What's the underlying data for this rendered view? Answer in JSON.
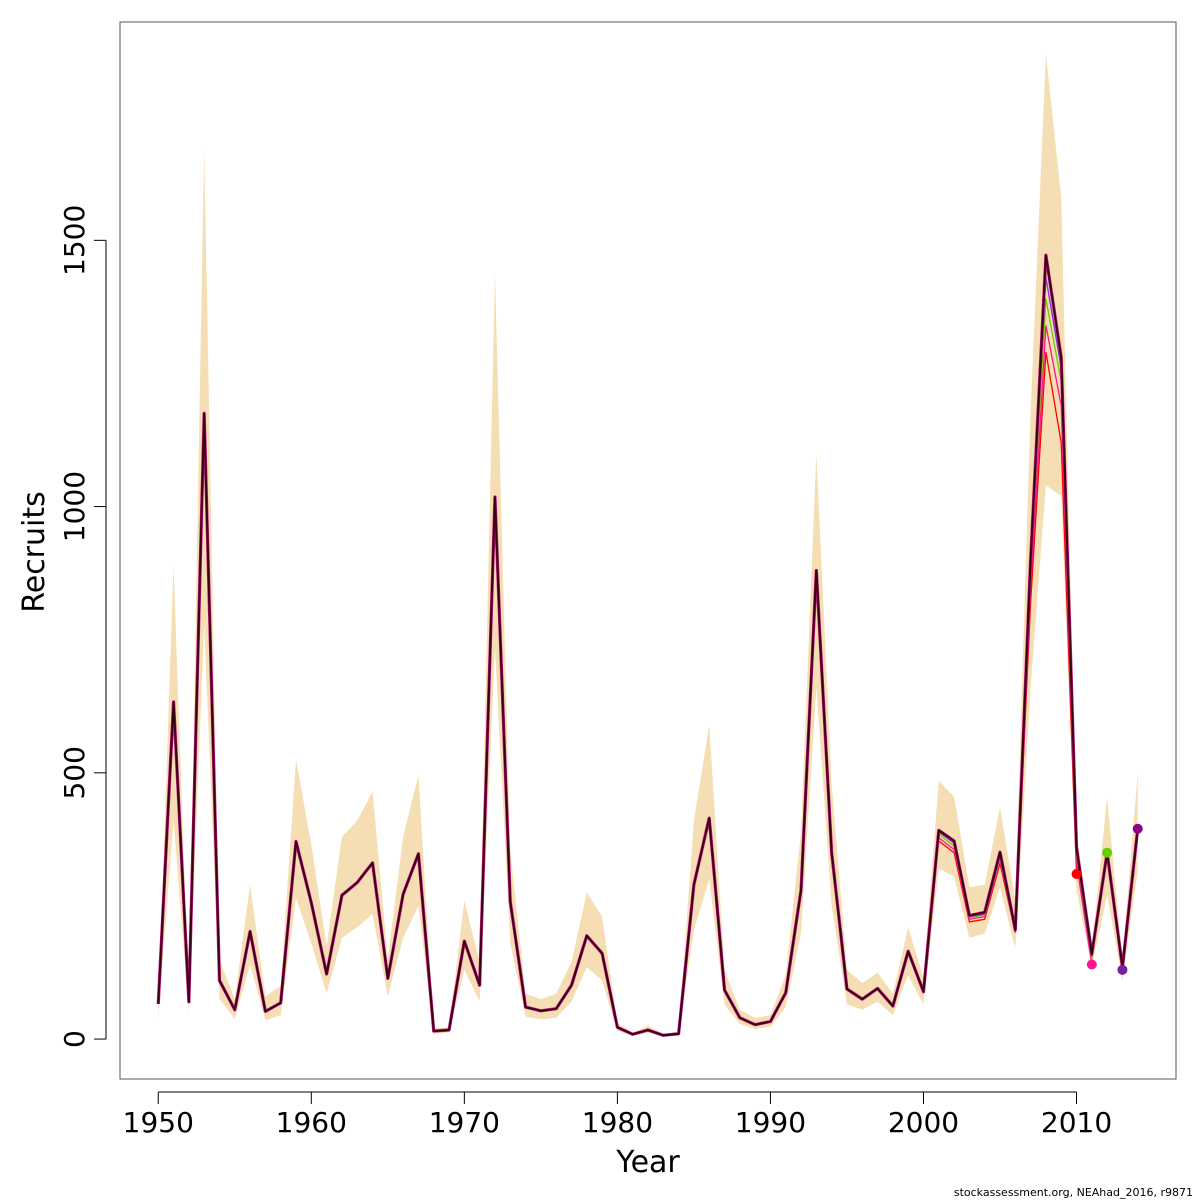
{
  "chart_data": {
    "type": "line",
    "xlabel": "Year",
    "ylabel": "Recruits",
    "xlim": [
      1947.5,
      2016.5
    ],
    "ylim": [
      -75,
      1910
    ],
    "xticks": [
      1950,
      1960,
      1970,
      1980,
      1990,
      2000,
      2010
    ],
    "yticks": [
      0,
      500,
      1000,
      1500
    ],
    "grid": false,
    "legend": "none",
    "colors": {
      "band": "#f5deb3",
      "main": "#000000",
      "retro": [
        "#ff0000",
        "#ff1493",
        "#66cd00",
        "#8a2be2",
        "#8b008b",
        "#c71585"
      ],
      "frame": "#555555"
    },
    "years": [
      1950,
      1951,
      1952,
      1953,
      1954,
      1955,
      1956,
      1957,
      1958,
      1959,
      1960,
      1961,
      1962,
      1963,
      1964,
      1965,
      1966,
      1967,
      1968,
      1969,
      1970,
      1971,
      1972,
      1973,
      1974,
      1975,
      1976,
      1977,
      1978,
      1979,
      1980,
      1981,
      1982,
      1983,
      1984,
      1985,
      1986,
      1987,
      1988,
      1989,
      1990,
      1991,
      1992,
      1993,
      1994,
      1995,
      1996,
      1997,
      1998,
      1999,
      2000,
      2001,
      2002,
      2003,
      2004,
      2005,
      2006,
      2007,
      2008,
      2009,
      2010,
      2011,
      2012,
      2013,
      2014
    ],
    "recruits": [
      66,
      633,
      70,
      1175,
      110,
      55,
      202,
      52,
      68,
      371,
      256,
      122,
      270,
      294,
      331,
      114,
      272,
      348,
      15,
      17,
      184,
      101,
      1018,
      258,
      60,
      53,
      57,
      101,
      194,
      161,
      22,
      9,
      17,
      7,
      10,
      290,
      415,
      92,
      40,
      27,
      33,
      87,
      280,
      880,
      350,
      94,
      75,
      95,
      62,
      165,
      89,
      392,
      372,
      232,
      238,
      351,
      205,
      900,
      1472,
      1280,
      360,
      160,
      350,
      135,
      395
    ],
    "band_upper": [
      50,
      890,
      70,
      1670,
      150,
      75,
      290,
      80,
      100,
      525,
      365,
      175,
      380,
      410,
      465,
      150,
      380,
      495,
      20,
      22,
      260,
      145,
      1440,
      355,
      85,
      75,
      85,
      145,
      275,
      230,
      30,
      12,
      25,
      10,
      14,
      410,
      590,
      130,
      55,
      40,
      45,
      120,
      390,
      1100,
      480,
      130,
      105,
      125,
      85,
      210,
      115,
      485,
      455,
      285,
      290,
      435,
      260,
      1180,
      1850,
      1580,
      390,
      170,
      455,
      150,
      500
    ],
    "band_lower": [
      40,
      410,
      50,
      780,
      75,
      38,
      140,
      35,
      45,
      265,
      180,
      85,
      190,
      210,
      235,
      80,
      190,
      250,
      10,
      12,
      130,
      70,
      735,
      180,
      42,
      37,
      40,
      70,
      135,
      110,
      15,
      6,
      12,
      5,
      7,
      205,
      300,
      65,
      28,
      19,
      23,
      60,
      200,
      660,
      250,
      65,
      55,
      70,
      45,
      120,
      65,
      320,
      305,
      190,
      198,
      285,
      170,
      660,
      1040,
      1020,
      280,
      135,
      270,
      110,
      315
    ],
    "retro_lines": [
      {
        "years": [
          2001,
          2002,
          2003,
          2004,
          2005,
          2006,
          2007,
          2008,
          2009,
          2010
        ],
        "values": [
          372,
          350,
          220,
          225,
          330,
          200,
          820,
          1290,
          1120,
          310
        ]
      },
      {
        "years": [
          2001,
          2002,
          2003,
          2004,
          2005,
          2006,
          2007,
          2008,
          2009,
          2010,
          2011
        ],
        "values": [
          378,
          356,
          225,
          230,
          336,
          202,
          850,
          1340,
          1190,
          330,
          140
        ]
      },
      {
        "years": [
          2001,
          2002,
          2003,
          2004,
          2005,
          2006,
          2007,
          2008,
          2009,
          2010,
          2011,
          2012
        ],
        "values": [
          385,
          362,
          228,
          233,
          340,
          204,
          880,
          1390,
          1235,
          345,
          150,
          350
        ]
      },
      {
        "years": [
          2001,
          2002,
          2003,
          2004,
          2005,
          2006,
          2007,
          2008,
          2009,
          2010,
          2011,
          2012,
          2013
        ],
        "values": [
          389,
          368,
          230,
          235,
          345,
          204,
          890,
          1430,
          1260,
          355,
          155,
          345,
          130
        ]
      }
    ],
    "retro_endpoints": [
      {
        "year": 2010,
        "value": 310,
        "color": "#ff0000"
      },
      {
        "year": 2011,
        "value": 140,
        "color": "#ff1493"
      },
      {
        "year": 2012,
        "value": 350,
        "color": "#66cd00"
      },
      {
        "year": 2013,
        "value": 130,
        "color": "#7a1fa2"
      },
      {
        "year": 2014,
        "value": 395,
        "color": "#8b008b"
      }
    ]
  },
  "footer": "stockassessment.org, NEAhad_2016, r9871"
}
